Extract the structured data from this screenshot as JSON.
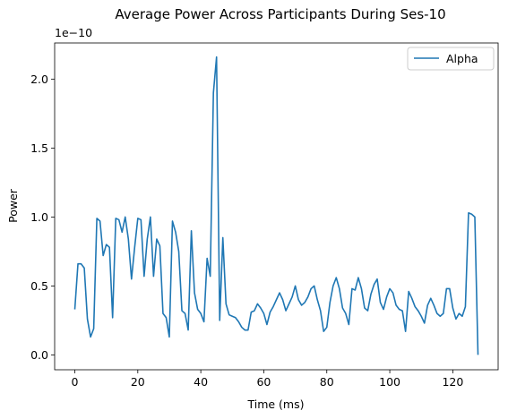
{
  "chart_data": {
    "type": "line",
    "title": "Average Power Across Participants During Ses-10",
    "xlabel": "Time (ms)",
    "ylabel": "Power",
    "y_offset_label": "1e−10",
    "xlim": [
      -6.4,
      134.4
    ],
    "ylim": [
      -0.108,
      2.262
    ],
    "x_ticks": [
      0,
      20,
      40,
      60,
      80,
      100,
      120
    ],
    "x_tick_labels": [
      "0",
      "20",
      "40",
      "60",
      "80",
      "100",
      "120"
    ],
    "y_ticks": [
      0.0,
      0.5,
      1.0,
      1.5,
      2.0
    ],
    "y_tick_labels": [
      "0.0",
      "0.5",
      "1.0",
      "1.5",
      "2.0"
    ],
    "grid": false,
    "legend_position": "top-right",
    "series": [
      {
        "name": "Alpha",
        "color": "#1f77b4",
        "values": [
          0.33,
          0.66,
          0.66,
          0.63,
          0.26,
          0.13,
          0.19,
          0.99,
          0.97,
          0.72,
          0.8,
          0.78,
          0.27,
          0.99,
          0.98,
          0.89,
          1.0,
          0.84,
          0.55,
          0.78,
          0.99,
          0.98,
          0.57,
          0.84,
          1.0,
          0.57,
          0.84,
          0.79,
          0.3,
          0.27,
          0.13,
          0.97,
          0.89,
          0.75,
          0.32,
          0.3,
          0.18,
          0.9,
          0.45,
          0.33,
          0.3,
          0.24,
          0.7,
          0.57,
          1.9,
          2.16,
          0.25,
          0.85,
          0.37,
          0.29,
          0.28,
          0.27,
          0.24,
          0.2,
          0.18,
          0.18,
          0.31,
          0.32,
          0.37,
          0.34,
          0.3,
          0.22,
          0.31,
          0.35,
          0.4,
          0.45,
          0.4,
          0.32,
          0.37,
          0.42,
          0.5,
          0.4,
          0.36,
          0.38,
          0.42,
          0.48,
          0.5,
          0.4,
          0.32,
          0.17,
          0.2,
          0.38,
          0.5,
          0.56,
          0.48,
          0.34,
          0.3,
          0.22,
          0.48,
          0.47,
          0.56,
          0.48,
          0.34,
          0.32,
          0.44,
          0.51,
          0.55,
          0.38,
          0.33,
          0.42,
          0.48,
          0.45,
          0.36,
          0.33,
          0.32,
          0.17,
          0.46,
          0.41,
          0.35,
          0.32,
          0.28,
          0.23,
          0.36,
          0.41,
          0.36,
          0.3,
          0.28,
          0.3,
          0.48,
          0.48,
          0.34,
          0.26,
          0.3,
          0.28,
          0.35,
          1.03,
          1.02,
          1.0,
          0.0
        ]
      }
    ]
  }
}
